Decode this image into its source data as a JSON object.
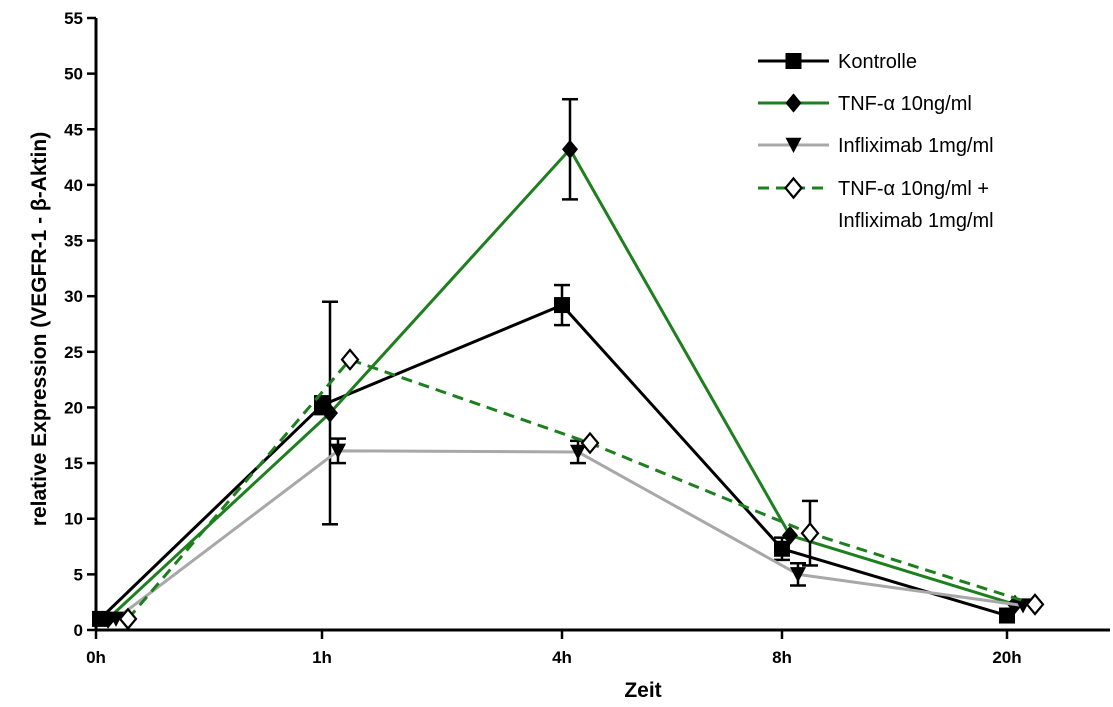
{
  "chart_data": {
    "type": "line",
    "title": "",
    "xlabel": "Zeit",
    "ylabel": "relative Expression (VEGFR-1 - β-Aktin)",
    "ylim": [
      0,
      55
    ],
    "yticks": [
      0,
      5,
      10,
      15,
      20,
      25,
      30,
      35,
      40,
      45,
      50,
      55
    ],
    "categories": [
      "0h",
      "1h",
      "4h",
      "8h",
      "20h"
    ],
    "grid": false,
    "legend_position": "top-right",
    "series": [
      {
        "name": "Kontrolle",
        "color": "#000000",
        "marker": "square",
        "dash": "solid",
        "values": [
          1.0,
          20.2,
          29.2,
          7.3,
          1.3
        ],
        "errors": [
          null,
          0.8,
          1.8,
          1.0,
          null
        ]
      },
      {
        "name": "TNF-α 10ng/ml",
        "color": "#1d7f1d",
        "marker": "diamond",
        "dash": "solid",
        "values": [
          1.0,
          19.5,
          43.2,
          8.5,
          2.3
        ],
        "errors": [
          null,
          10.0,
          4.5,
          null,
          null
        ]
      },
      {
        "name": "Infliximab 1mg/ml",
        "color": "#a8a8a8",
        "marker": "triangle-down",
        "dash": "solid",
        "values": [
          1.0,
          16.1,
          16.0,
          5.0,
          2.2
        ],
        "errors": [
          null,
          1.1,
          1.0,
          1.0,
          null
        ]
      },
      {
        "name": "TNF-α 10ng/ml + Infliximab 1mg/ml",
        "legend_lines": [
          "TNF-α 10ng/ml +",
          "Infliximab 1mg/ml"
        ],
        "color": "#1d7f1d",
        "marker": "diamond-open",
        "dash": "dashed",
        "values": [
          1.0,
          24.3,
          16.8,
          8.7,
          2.3
        ],
        "errors": [
          null,
          null,
          null,
          2.9,
          null
        ]
      }
    ]
  }
}
